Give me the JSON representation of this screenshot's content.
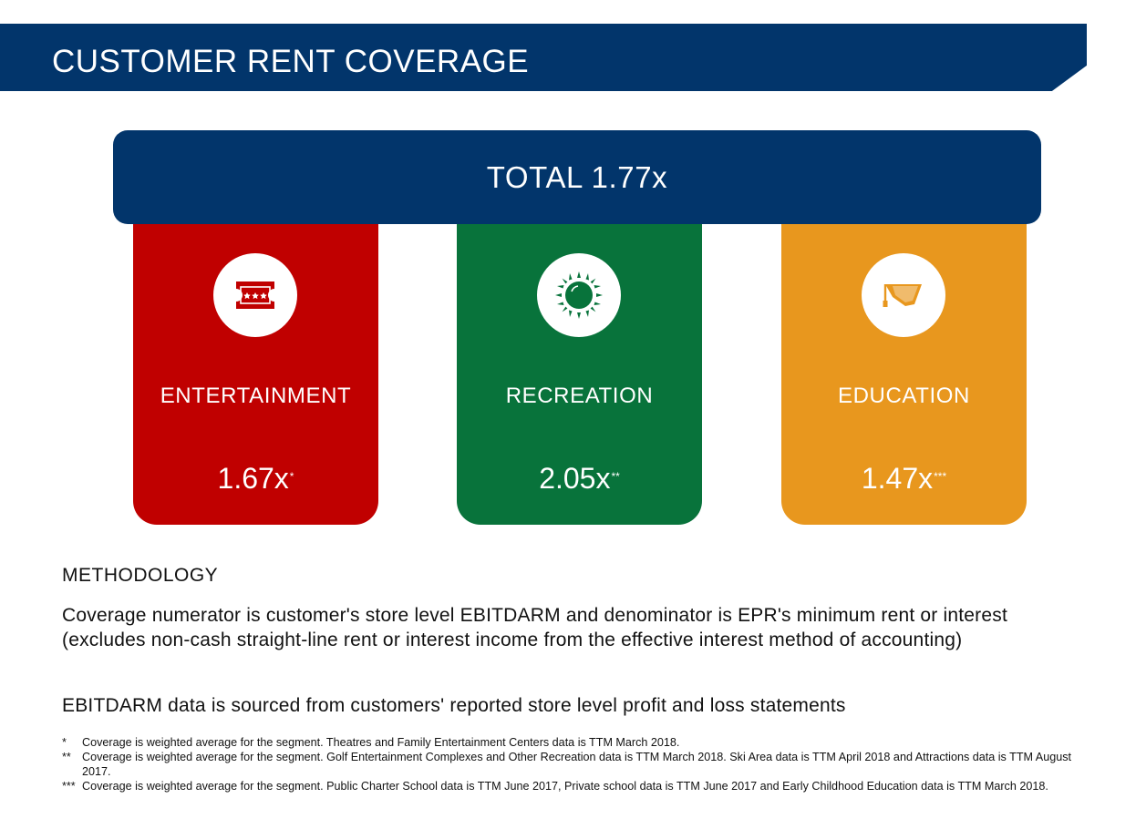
{
  "header": {
    "title": "CUSTOMER RENT COVERAGE"
  },
  "total": {
    "label": "TOTAL 1.77x"
  },
  "segments": [
    {
      "label": "ENTERTAINMENT",
      "value": "1.67x",
      "mark": "*",
      "icon": "ticket-icon",
      "color": "#c00000"
    },
    {
      "label": "RECREATION",
      "value": "2.05x",
      "mark": "**",
      "icon": "sun-icon",
      "color": "#08733b"
    },
    {
      "label": "EDUCATION",
      "value": "1.47x",
      "mark": "***",
      "icon": "graduation-cap-icon",
      "color": "#e8971e"
    }
  ],
  "methodology": {
    "heading": "METHODOLOGY",
    "paragraphs": [
      "Coverage numerator is customer's store level EBITDARM and denominator is EPR's minimum rent or interest (excludes non-cash straight-line rent or interest income from the effective interest method of accounting)",
      "EBITDARM data is sourced from customers' reported store level profit and loss statements"
    ]
  },
  "footnotes": [
    {
      "mark": "*",
      "text": "Coverage is weighted average for the segment. Theatres and Family Entertainment Centers data is TTM March 2018."
    },
    {
      "mark": "**",
      "text": "Coverage is weighted average for the segment. Golf Entertainment Complexes and Other Recreation data is TTM March 2018. Ski Area data is TTM April 2018 and Attractions data is TTM August 2017."
    },
    {
      "mark": "***",
      "text": "Coverage is weighted average for the segment.  Public Charter School data is TTM June 2017, Private school data is TTM June 2017 and Early Childhood Education data is TTM March 2018."
    }
  ],
  "colors": {
    "navy": "#02356b",
    "red": "#c00000",
    "green": "#08733b",
    "orange": "#e8971e"
  }
}
